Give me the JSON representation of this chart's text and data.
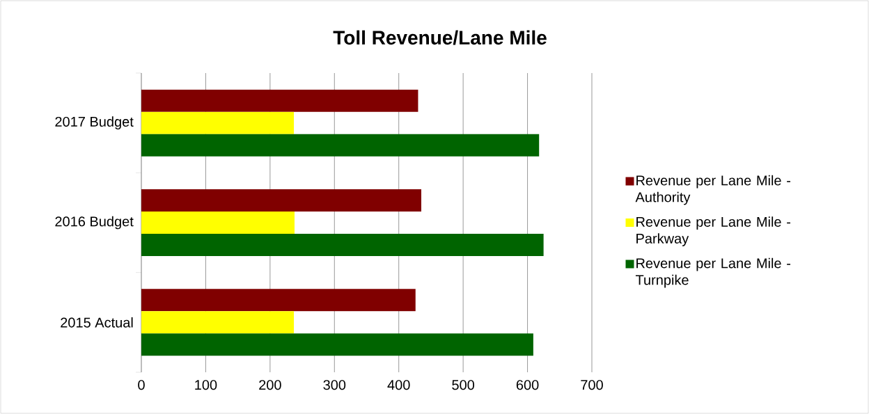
{
  "chart_data": {
    "type": "bar",
    "orientation": "horizontal",
    "title": "Toll Revenue/Lane Mile",
    "categories": [
      "2017 Budget",
      "2016 Budget",
      "2015 Actual"
    ],
    "series": [
      {
        "name": "Revenue per Lane Mile - Authority",
        "color": "#800000",
        "values": [
          430,
          435,
          426
        ]
      },
      {
        "name": "Revenue per Lane Mile - Parkway",
        "color": "#ffff00",
        "values": [
          237,
          238,
          237
        ]
      },
      {
        "name": "Revenue per Lane Mile - Turnpike",
        "color": "#006400",
        "values": [
          618,
          625,
          609
        ]
      }
    ],
    "xlim": [
      0,
      700
    ],
    "xticks": [
      0,
      100,
      200,
      300,
      400,
      500,
      600,
      700
    ],
    "grid": "x",
    "legend": "right"
  }
}
